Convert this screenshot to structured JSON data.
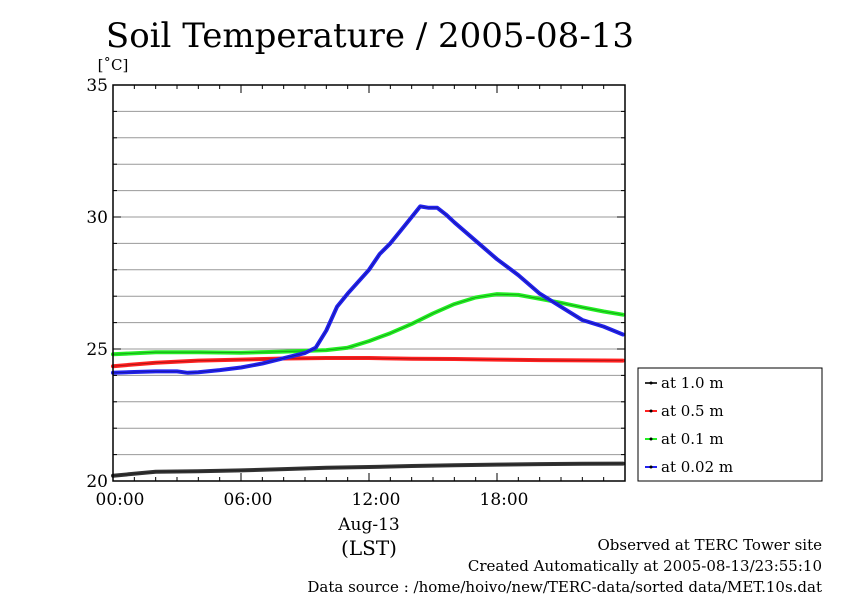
{
  "chart_data": {
    "type": "line",
    "title": "Soil Temperature / 2005-08-13",
    "ylabel": "[˚C]",
    "xlabel": "(LST)",
    "x_date_label": "Aug-13",
    "x_unit": "hour",
    "xlim": [
      0,
      24
    ],
    "ylim": [
      20,
      35
    ],
    "x_ticks": [
      {
        "value": 0,
        "label": "00:00"
      },
      {
        "value": 6,
        "label": "06:00"
      },
      {
        "value": 12,
        "label": "12:00"
      },
      {
        "value": 18,
        "label": "18:00"
      }
    ],
    "y_ticks": [
      {
        "value": 20,
        "label": "20"
      },
      {
        "value": 25,
        "label": "25"
      },
      {
        "value": 30,
        "label": "30"
      },
      {
        "value": 35,
        "label": "35"
      }
    ],
    "grid": true,
    "legend_position": "outside-right",
    "series": [
      {
        "name": "at 1.0 m",
        "color": "#333333",
        "points": [
          [
            0,
            20.2
          ],
          [
            2,
            20.35
          ],
          [
            4,
            20.37
          ],
          [
            6,
            20.4
          ],
          [
            8,
            20.45
          ],
          [
            10,
            20.5
          ],
          [
            12,
            20.53
          ],
          [
            14,
            20.57
          ],
          [
            16,
            20.6
          ],
          [
            18,
            20.62
          ],
          [
            20,
            20.64
          ],
          [
            22,
            20.65
          ],
          [
            23.9,
            20.66
          ]
        ]
      },
      {
        "name": "at 0.5 m",
        "color": "#ff2020",
        "points": [
          [
            0,
            24.35
          ],
          [
            2,
            24.48
          ],
          [
            4,
            24.56
          ],
          [
            6,
            24.6
          ],
          [
            8,
            24.64
          ],
          [
            10,
            24.66
          ],
          [
            12,
            24.66
          ],
          [
            14,
            24.63
          ],
          [
            16,
            24.62
          ],
          [
            18,
            24.6
          ],
          [
            20,
            24.58
          ],
          [
            22,
            24.57
          ],
          [
            23.9,
            24.56
          ]
        ]
      },
      {
        "name": "at 0.1 m",
        "color": "#22ee22",
        "points": [
          [
            0,
            24.8
          ],
          [
            2,
            24.88
          ],
          [
            4,
            24.88
          ],
          [
            6,
            24.86
          ],
          [
            8,
            24.9
          ],
          [
            10,
            24.96
          ],
          [
            11,
            25.05
          ],
          [
            12,
            25.3
          ],
          [
            13,
            25.6
          ],
          [
            14,
            25.95
          ],
          [
            15,
            26.35
          ],
          [
            16,
            26.7
          ],
          [
            17,
            26.95
          ],
          [
            18,
            27.08
          ],
          [
            19,
            27.05
          ],
          [
            20,
            26.9
          ],
          [
            21,
            26.75
          ],
          [
            22,
            26.58
          ],
          [
            23,
            26.42
          ],
          [
            23.9,
            26.3
          ]
        ]
      },
      {
        "name": "at 0.02 m",
        "color": "#2222ee",
        "points": [
          [
            0,
            24.1
          ],
          [
            1,
            24.13
          ],
          [
            2,
            24.15
          ],
          [
            3,
            24.15
          ],
          [
            3.5,
            24.1
          ],
          [
            4,
            24.12
          ],
          [
            5,
            24.2
          ],
          [
            6,
            24.3
          ],
          [
            7,
            24.45
          ],
          [
            8,
            24.65
          ],
          [
            9,
            24.85
          ],
          [
            9.5,
            25.05
          ],
          [
            10,
            25.7
          ],
          [
            10.5,
            26.6
          ],
          [
            11,
            27.1
          ],
          [
            12,
            28.0
          ],
          [
            12.5,
            28.6
          ],
          [
            13,
            29.0
          ],
          [
            13.5,
            29.5
          ],
          [
            14,
            30.0
          ],
          [
            14.4,
            30.4
          ],
          [
            14.8,
            30.35
          ],
          [
            15.2,
            30.35
          ],
          [
            15.6,
            30.1
          ],
          [
            16,
            29.8
          ],
          [
            17,
            29.1
          ],
          [
            18,
            28.4
          ],
          [
            19,
            27.8
          ],
          [
            20,
            27.1
          ],
          [
            21,
            26.6
          ],
          [
            22,
            26.1
          ],
          [
            23,
            25.85
          ],
          [
            23.9,
            25.55
          ]
        ]
      }
    ]
  },
  "footer": {
    "observed": "Observed at TERC Tower site",
    "created": "Created Automatically at 2005-08-13/23:55:10",
    "source": "Data source : /home/hoivo/new/TERC-data/sorted  data/MET.10s.dat"
  }
}
